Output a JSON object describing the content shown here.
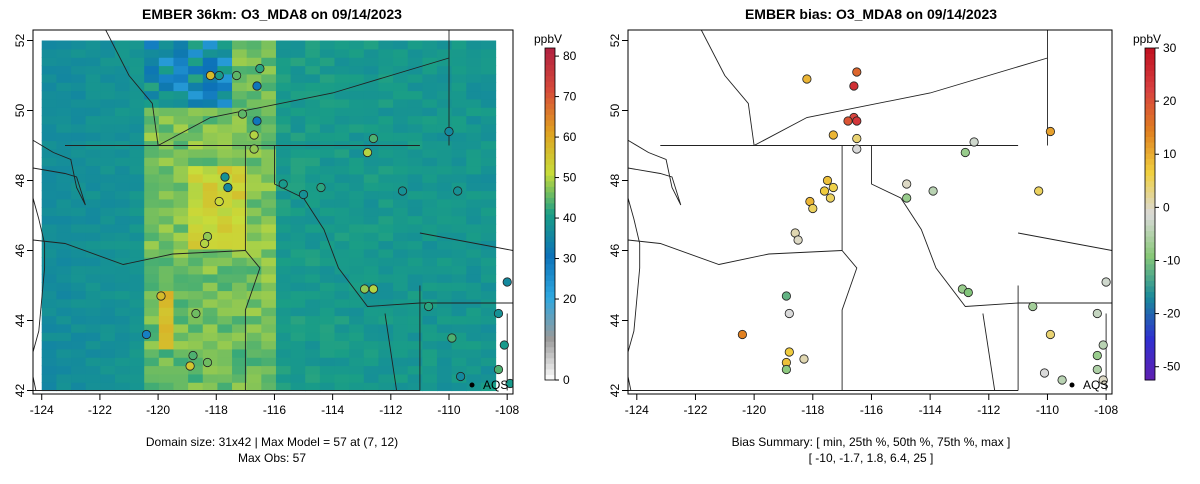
{
  "left_panel": {
    "title": "EMBER 36km: O3_MDA8 on 09/14/2023",
    "footer_line1": "Domain size: 31x42 | Max Model = 57 at (7, 12)",
    "footer_line2": "Max Obs: 57",
    "colorbar_unit": "ppbV",
    "colorbar_ticks": [
      0,
      20,
      30,
      40,
      50,
      60,
      70,
      80
    ],
    "colorbar_colors": [
      "#ffffff",
      "#9a9a9a",
      "#2ea8e0",
      "#0d72b8",
      "#1a9e86",
      "#c8dc3a",
      "#e0a020",
      "#d64a3a",
      "#b02040"
    ],
    "site_label": "AQS"
  },
  "right_panel": {
    "title": "EMBER bias: O3_MDA8 on 09/14/2023",
    "footer_line1": "Bias Summary: [ min, 25th %, 50th %, 75th %, max ]",
    "footer_line2": "[ -10,   -1.7,   1.8,   6.4,   25 ]",
    "colorbar_unit": "ppbV",
    "colorbar_ticks": [
      -50,
      -20,
      -10,
      0,
      10,
      20,
      30
    ],
    "colorbar_colors": [
      "#6020b0",
      "#3030d0",
      "#1a8a9a",
      "#88c878",
      "#dadada",
      "#f0d040",
      "#e08020",
      "#d84040",
      "#c01020"
    ],
    "site_label": "AQS"
  },
  "chart_data": [
    {
      "type": "heatmap",
      "title": "EMBER 36km: O3_MDA8 on 09/14/2023",
      "variable": "O3_MDA8",
      "unit": "ppbV",
      "x_ticks": [
        -124,
        -122,
        -120,
        -118,
        -116,
        -114,
        -112,
        -110,
        -108
      ],
      "y_ticks": [
        42,
        44,
        46,
        48,
        50,
        52
      ],
      "xlim": [
        -124.3,
        -107.8
      ],
      "ylim": [
        41.9,
        52.3
      ],
      "colorbar_range": [
        0,
        82
      ],
      "stations": [
        {
          "lon": -117.9,
          "lat": 51.0,
          "value": 40
        },
        {
          "lon": -117.3,
          "lat": 51.0,
          "value": 45
        },
        {
          "lon": -116.6,
          "lat": 50.7,
          "value": 30
        },
        {
          "lon": -116.5,
          "lat": 51.2,
          "value": 42
        },
        {
          "lon": -117.1,
          "lat": 49.9,
          "value": 45
        },
        {
          "lon": -116.6,
          "lat": 49.7,
          "value": 30
        },
        {
          "lon": -116.7,
          "lat": 49.3,
          "value": 50
        },
        {
          "lon": -116.7,
          "lat": 48.9,
          "value": 48
        },
        {
          "lon": -118.2,
          "lat": 51.0,
          "value": 57
        },
        {
          "lon": -117.7,
          "lat": 48.1,
          "value": 38
        },
        {
          "lon": -117.6,
          "lat": 47.8,
          "value": 36
        },
        {
          "lon": -117.9,
          "lat": 47.4,
          "value": 52
        },
        {
          "lon": -118.3,
          "lat": 46.4,
          "value": 48
        },
        {
          "lon": -118.4,
          "lat": 46.2,
          "value": 50
        },
        {
          "lon": -115.7,
          "lat": 47.9,
          "value": 40
        },
        {
          "lon": -115.0,
          "lat": 47.6,
          "value": 38
        },
        {
          "lon": -114.4,
          "lat": 47.8,
          "value": 42
        },
        {
          "lon": -112.8,
          "lat": 48.8,
          "value": 50
        },
        {
          "lon": -112.6,
          "lat": 49.2,
          "value": 44
        },
        {
          "lon": -111.6,
          "lat": 47.7,
          "value": 38
        },
        {
          "lon": -110.0,
          "lat": 49.4,
          "value": 36
        },
        {
          "lon": -109.7,
          "lat": 47.7,
          "value": 38
        },
        {
          "lon": -112.6,
          "lat": 44.9,
          "value": 50
        },
        {
          "lon": -112.9,
          "lat": 44.9,
          "value": 48
        },
        {
          "lon": -110.7,
          "lat": 44.4,
          "value": 42
        },
        {
          "lon": -109.9,
          "lat": 43.5,
          "value": 44
        },
        {
          "lon": -108.3,
          "lat": 44.2,
          "value": 38
        },
        {
          "lon": -108.0,
          "lat": 45.1,
          "value": 36
        },
        {
          "lon": -120.4,
          "lat": 43.6,
          "value": 28
        },
        {
          "lon": -119.9,
          "lat": 44.7,
          "value": 57
        },
        {
          "lon": -118.7,
          "lat": 44.2,
          "value": 46
        },
        {
          "lon": -118.8,
          "lat": 43.0,
          "value": 44
        },
        {
          "lon": -118.9,
          "lat": 42.7,
          "value": 55
        },
        {
          "lon": -118.3,
          "lat": 42.8,
          "value": 46
        },
        {
          "lon": -108.1,
          "lat": 43.3,
          "value": 40
        },
        {
          "lon": -108.3,
          "lat": 42.6,
          "value": 44
        },
        {
          "lon": -107.9,
          "lat": 42.2,
          "value": 40
        },
        {
          "lon": -109.6,
          "lat": 42.4,
          "value": 36
        }
      ]
    },
    {
      "type": "scatter",
      "title": "EMBER bias: O3_MDA8 on 09/14/2023",
      "variable": "bias",
      "unit": "ppbV",
      "x_ticks": [
        -124,
        -122,
        -120,
        -118,
        -116,
        -114,
        -112,
        -110,
        -108
      ],
      "y_ticks": [
        42,
        44,
        46,
        48,
        50,
        52
      ],
      "xlim": [
        -124.3,
        -107.8
      ],
      "ylim": [
        41.9,
        52.3
      ],
      "colorbar_range": [
        -50,
        30
      ],
      "summary": {
        "min": -10,
        "p25": -1.7,
        "median": 1.8,
        "p75": 6.4,
        "max": 25
      },
      "stations": [
        {
          "lon": -118.2,
          "lat": 50.9,
          "value": 10
        },
        {
          "lon": -116.5,
          "lat": 51.1,
          "value": 18
        },
        {
          "lon": -116.6,
          "lat": 50.7,
          "value": 25
        },
        {
          "lon": -116.6,
          "lat": 49.8,
          "value": 22
        },
        {
          "lon": -116.5,
          "lat": 49.7,
          "value": 24
        },
        {
          "lon": -117.3,
          "lat": 49.3,
          "value": 10
        },
        {
          "lon": -116.8,
          "lat": 49.7,
          "value": 20
        },
        {
          "lon": -116.5,
          "lat": 49.2,
          "value": 5
        },
        {
          "lon": -116.5,
          "lat": 48.9,
          "value": 0
        },
        {
          "lon": -117.5,
          "lat": 48.0,
          "value": 9
        },
        {
          "lon": -117.6,
          "lat": 47.7,
          "value": 8
        },
        {
          "lon": -117.4,
          "lat": 47.5,
          "value": 6
        },
        {
          "lon": -117.3,
          "lat": 47.8,
          "value": 7
        },
        {
          "lon": -118.1,
          "lat": 47.4,
          "value": 10
        },
        {
          "lon": -118.0,
          "lat": 47.2,
          "value": 6
        },
        {
          "lon": -118.6,
          "lat": 46.5,
          "value": 2
        },
        {
          "lon": -118.5,
          "lat": 46.3,
          "value": 1
        },
        {
          "lon": -114.8,
          "lat": 47.9,
          "value": 1
        },
        {
          "lon": -114.8,
          "lat": 47.5,
          "value": -6
        },
        {
          "lon": -113.9,
          "lat": 47.7,
          "value": -3
        },
        {
          "lon": -112.8,
          "lat": 48.8,
          "value": -6
        },
        {
          "lon": -112.5,
          "lat": 49.1,
          "value": -1
        },
        {
          "lon": -109.9,
          "lat": 49.4,
          "value": 12
        },
        {
          "lon": -110.3,
          "lat": 47.7,
          "value": 6
        },
        {
          "lon": -112.9,
          "lat": 44.9,
          "value": -6
        },
        {
          "lon": -112.7,
          "lat": 44.8,
          "value": -8
        },
        {
          "lon": -110.5,
          "lat": 44.4,
          "value": -5
        },
        {
          "lon": -109.9,
          "lat": 43.6,
          "value": 5
        },
        {
          "lon": -108.3,
          "lat": 44.2,
          "value": -2
        },
        {
          "lon": -108.0,
          "lat": 45.1,
          "value": -1
        },
        {
          "lon": -108.1,
          "lat": 43.3,
          "value": -3
        },
        {
          "lon": -108.3,
          "lat": 43.0,
          "value": -6
        },
        {
          "lon": -120.4,
          "lat": 43.6,
          "value": 15
        },
        {
          "lon": -118.9,
          "lat": 44.7,
          "value": -10
        },
        {
          "lon": -118.8,
          "lat": 44.2,
          "value": 0
        },
        {
          "lon": -118.8,
          "lat": 43.1,
          "value": 8
        },
        {
          "lon": -118.9,
          "lat": 42.8,
          "value": 9
        },
        {
          "lon": -118.9,
          "lat": 42.6,
          "value": -7
        },
        {
          "lon": -118.3,
          "lat": 42.9,
          "value": 2
        },
        {
          "lon": -110.1,
          "lat": 42.5,
          "value": 0
        },
        {
          "lon": -109.5,
          "lat": 42.3,
          "value": -3
        },
        {
          "lon": -108.3,
          "lat": 42.6,
          "value": -4
        },
        {
          "lon": -108.1,
          "lat": 42.3,
          "value": 1
        }
      ]
    }
  ]
}
